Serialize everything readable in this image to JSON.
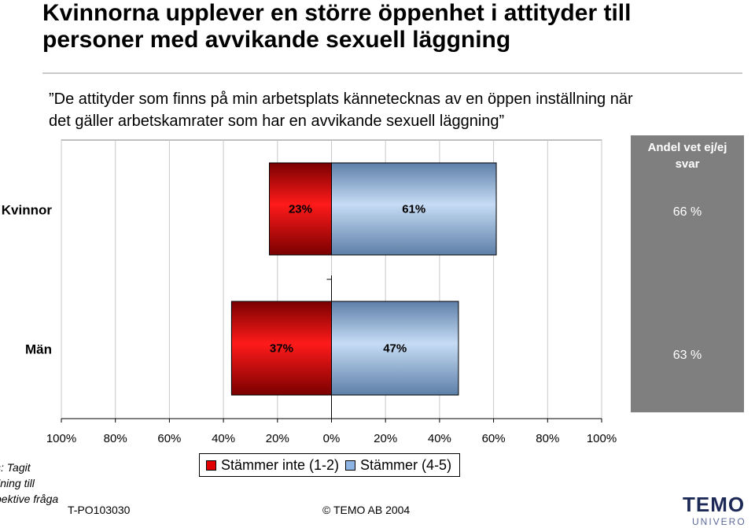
{
  "header": {
    "title_line1": "Kvinnorna upplever en större öppenhet i attityder till",
    "title_line2": "personer med avvikande sexuell läggning",
    "subtitle_line1": "”De attityder som finns på min arbetsplats kännetecknas av en öppen inställning när",
    "subtitle_line2": "det gäller arbetskamrater som har en avvikande sexuell läggning”"
  },
  "chart_data": {
    "type": "bar",
    "orientation": "horizontal-diverging",
    "categories": [
      "Kvinnor",
      "Män"
    ],
    "series": [
      {
        "name": "Stämmer inte (1-2)",
        "values": [
          23,
          37
        ],
        "labels": [
          "23%",
          "37%"
        ],
        "color": "#c00000"
      },
      {
        "name": "Stämmer (4-5)",
        "values": [
          61,
          47
        ],
        "labels": [
          "61%",
          "47%"
        ],
        "color": "#8db4e2"
      }
    ],
    "xlim": [
      -100,
      100
    ],
    "ticks": [
      "100%",
      "80%",
      "60%",
      "40%",
      "20%",
      "0%",
      "20%",
      "40%",
      "60%",
      "80%",
      "100%"
    ],
    "side_panel": {
      "header": "Andel vet ej/ej svar",
      "header_line1": "Andel vet ej/ej",
      "header_line2": "svar",
      "values": [
        "66 %",
        "63 %"
      ]
    },
    "legend_position": "bottom",
    "grid": true
  },
  "legend": {
    "item1": "Stämmer inte (1-2)",
    "item2": "Stämmer (4-5)"
  },
  "note": {
    "line1": "s: Tagit",
    "line2": "llning till",
    "line3": "pektive fråga"
  },
  "footer": {
    "code": "T-PO103030",
    "copyright": "©  TEMO AB 2004",
    "logo": "TEMO",
    "logo_sub": "UNIVERO"
  },
  "colors": {
    "negative": "#c00000",
    "positive": "#8db4e2",
    "panel": "#7f7f7f"
  }
}
